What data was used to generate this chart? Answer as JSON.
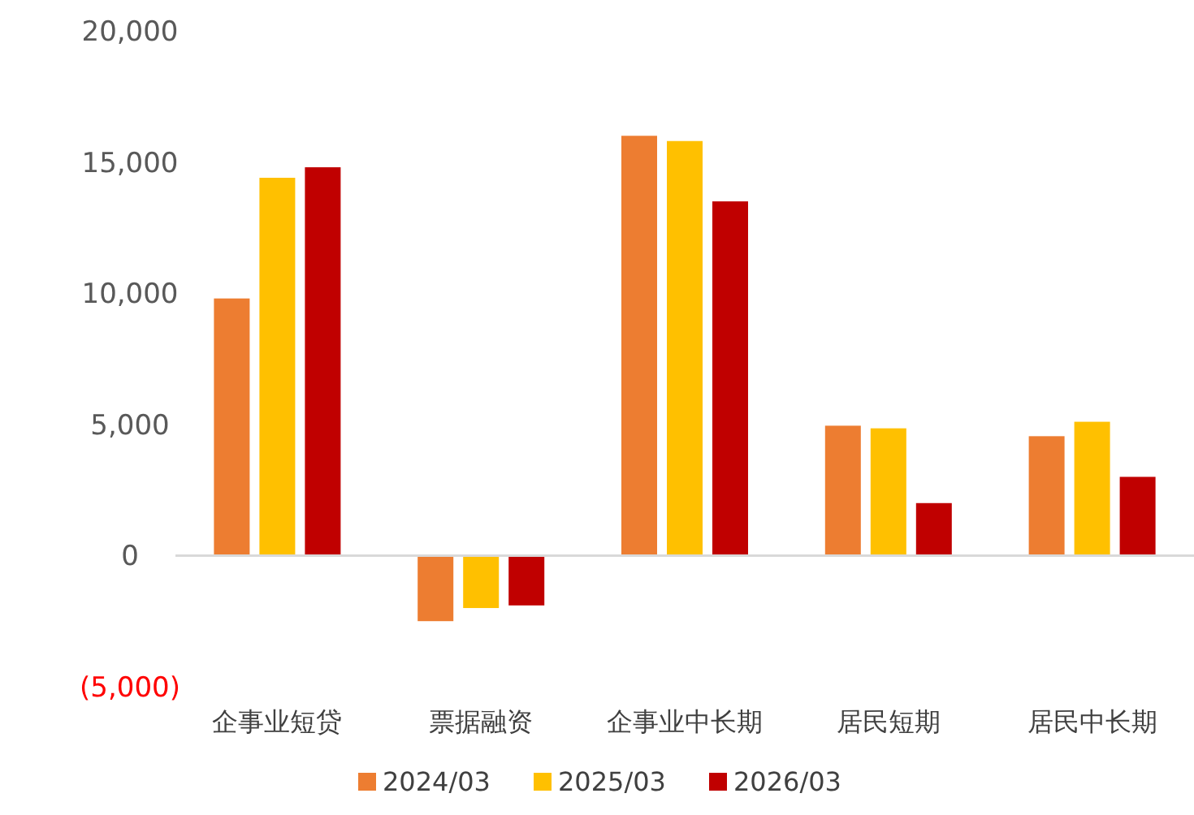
{
  "chart_data": {
    "type": "bar",
    "categories": [
      "企事业短贷",
      "票据融资",
      "企事业中长期",
      "居民短期",
      "居民中长期"
    ],
    "series": [
      {
        "name": "2024/03",
        "color": "#ed7d31",
        "values": [
          9800,
          -2500,
          16000,
          4950,
          4550
        ]
      },
      {
        "name": "2025/03",
        "color": "#ffc000",
        "values": [
          14400,
          -2000,
          15800,
          4850,
          5100
        ]
      },
      {
        "name": "2026/03",
        "color": "#c00000",
        "values": [
          14800,
          -1900,
          13500,
          2000,
          3000
        ]
      }
    ],
    "ylim": [
      -5000,
      20000
    ],
    "yticks": [
      {
        "value": -5000,
        "label": "(5,000)"
      },
      {
        "value": 0,
        "label": "0"
      },
      {
        "value": 5000,
        "label": "5,000"
      },
      {
        "value": 10000,
        "label": "10,000"
      },
      {
        "value": 15000,
        "label": "15,000"
      },
      {
        "value": 20000,
        "label": "20,000"
      }
    ],
    "legend": "bottom"
  }
}
